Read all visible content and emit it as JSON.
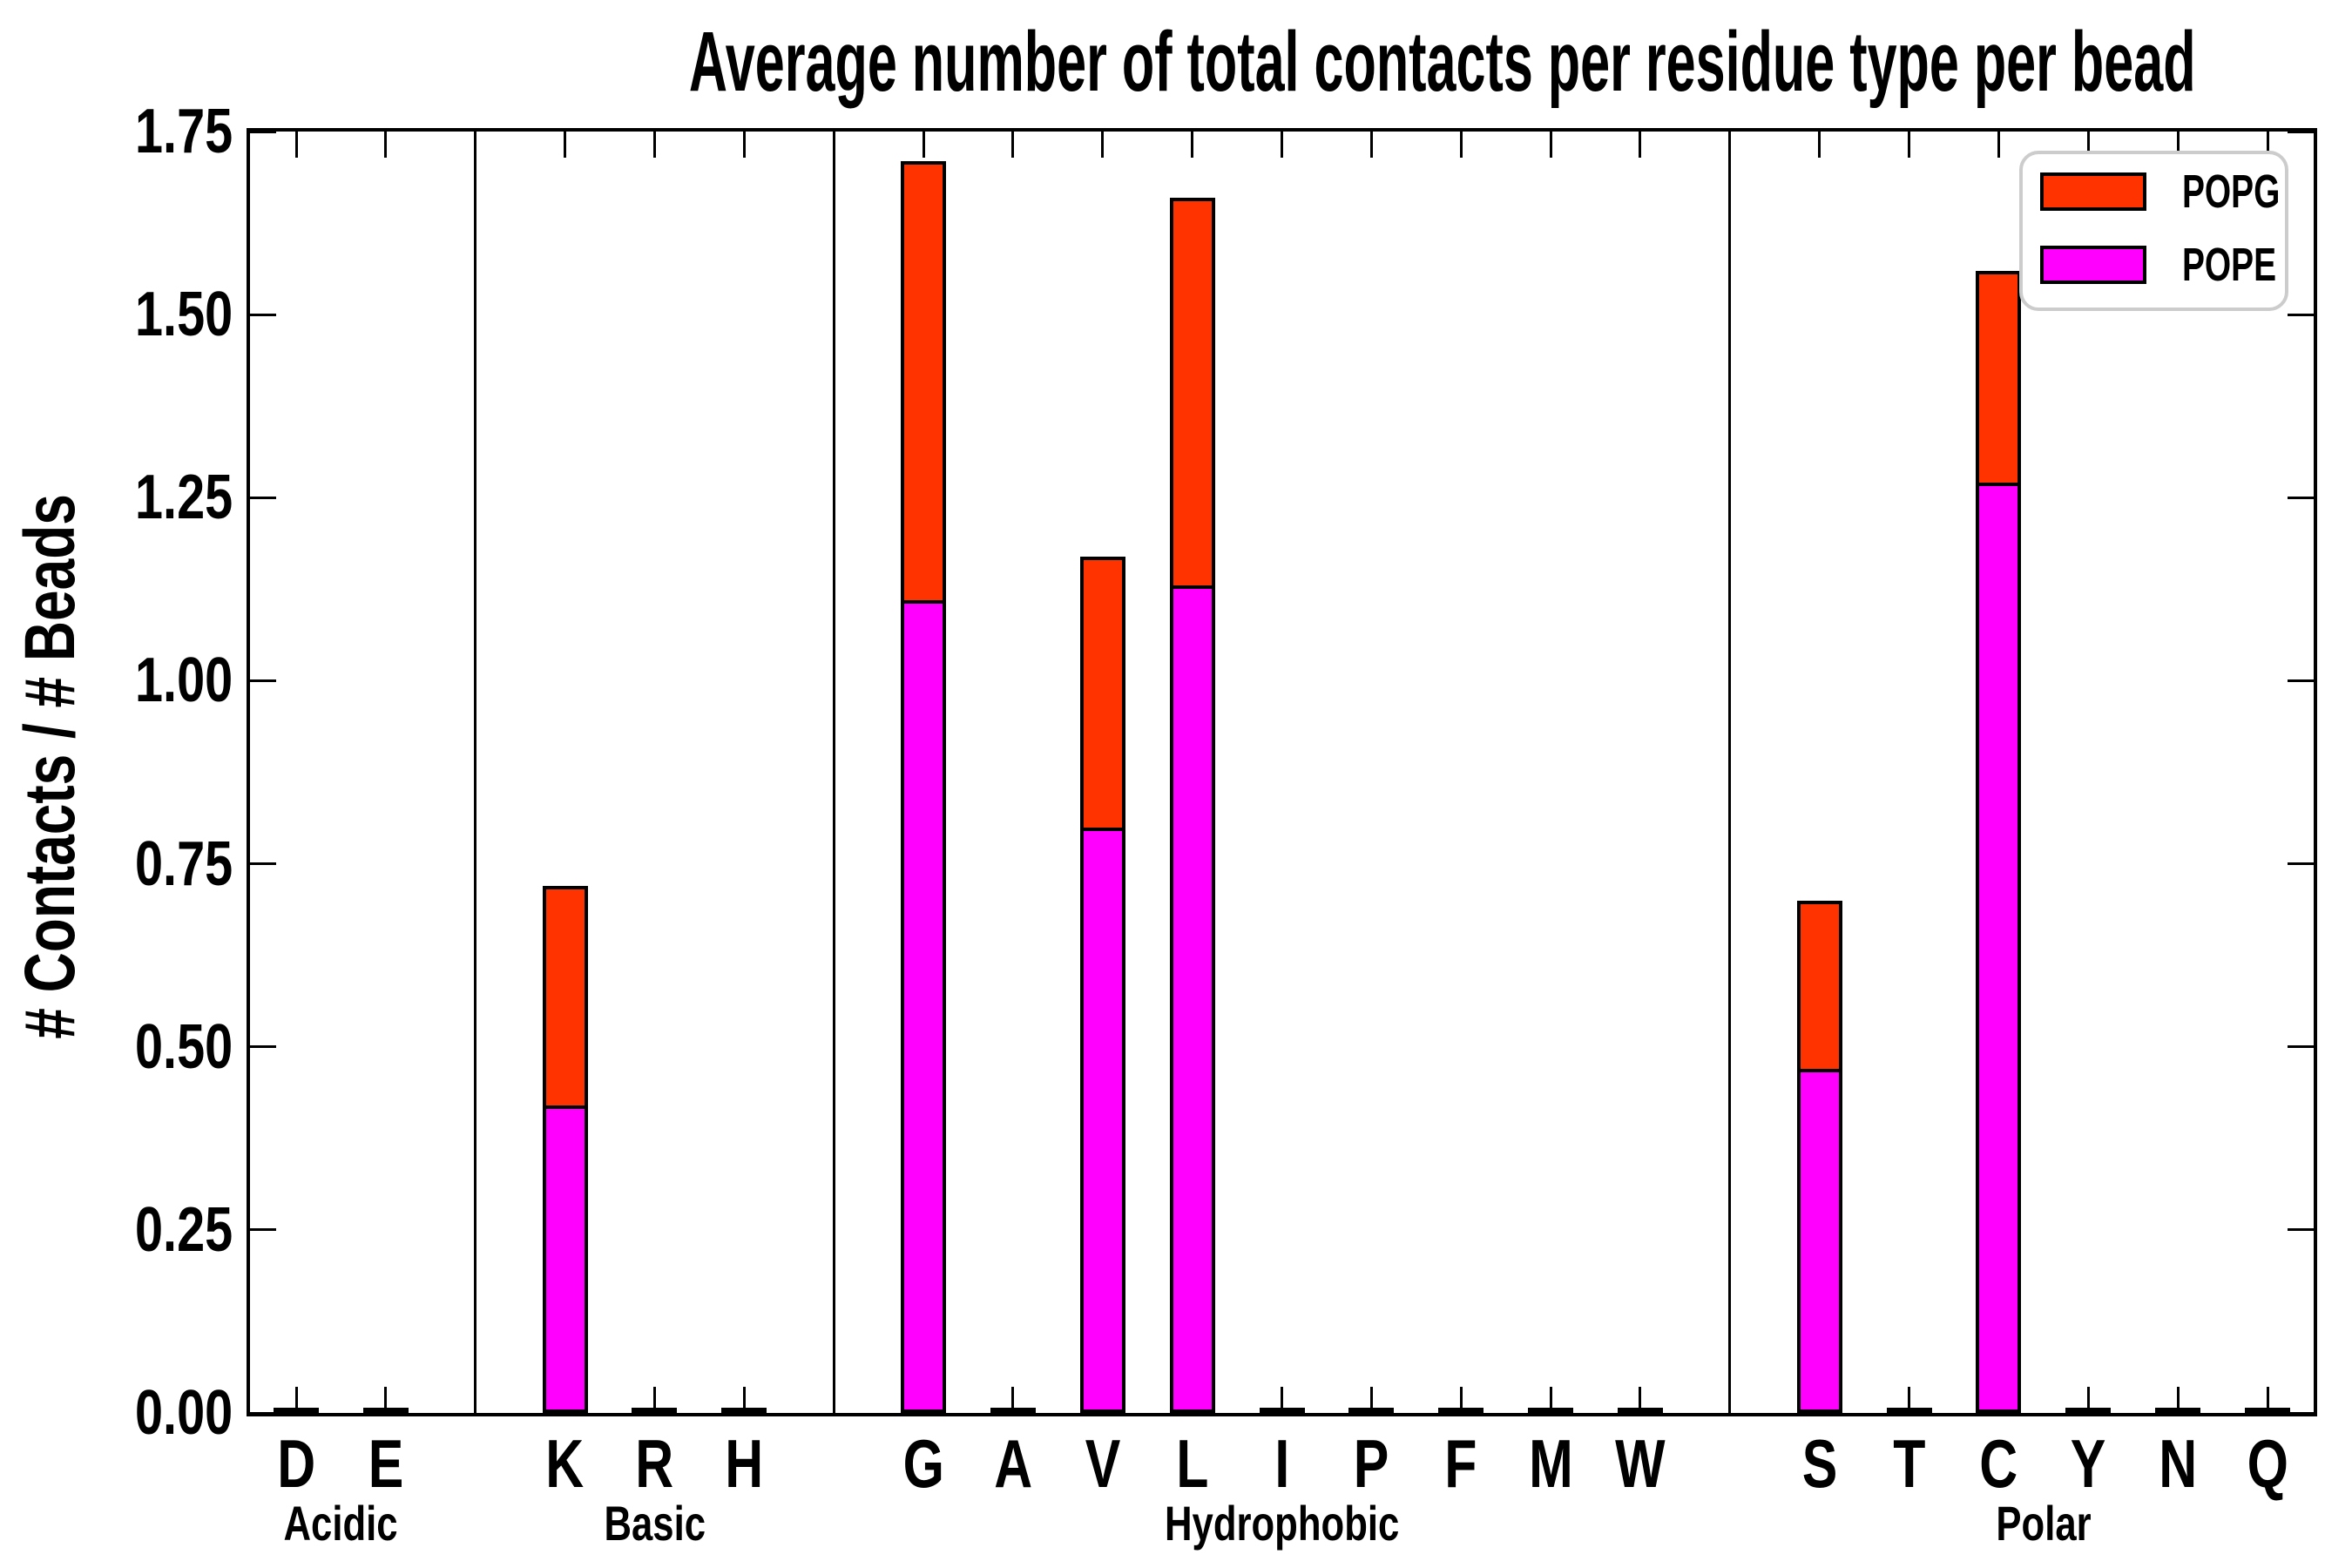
{
  "title": "Average number of total contacts per residue type per bead",
  "y_axis": {
    "label": "# Contacts / # Beads",
    "ticks": [
      "0.00",
      "0.25",
      "0.50",
      "0.75",
      "1.00",
      "1.25",
      "1.50",
      "1.75"
    ]
  },
  "legend": [
    {
      "label": "POPG",
      "color": "#ff3300"
    },
    {
      "label": "POPE",
      "color": "#ff00ff"
    }
  ],
  "chart_data": {
    "type": "bar",
    "stacked": true,
    "title": "Average number of total contacts per residue type per bead",
    "ylabel": "# Contacts / # Beads",
    "ylim": [
      0,
      1.75
    ],
    "ytick_step": 0.25,
    "grid": false,
    "legend_position": "upper right",
    "categories": [
      "D",
      "E",
      "K",
      "R",
      "H",
      "G",
      "A",
      "V",
      "L",
      "I",
      "P",
      "F",
      "M",
      "W",
      "S",
      "T",
      "C",
      "Y",
      "N",
      "Q"
    ],
    "groups": [
      {
        "label": "Acidic",
        "residues": [
          "D",
          "E"
        ]
      },
      {
        "label": "Basic",
        "residues": [
          "K",
          "R",
          "H"
        ]
      },
      {
        "label": "Hydrophobic",
        "residues": [
          "G",
          "A",
          "V",
          "L",
          "I",
          "P",
          "F",
          "M",
          "W"
        ]
      },
      {
        "label": "Polar",
        "residues": [
          "S",
          "T",
          "C",
          "Y",
          "N",
          "Q"
        ]
      }
    ],
    "series": [
      {
        "name": "POPE",
        "color": "#ff00ff",
        "stack_order": "bottom",
        "values": [
          0.005,
          0.005,
          0.42,
          0.005,
          0.005,
          1.11,
          0.005,
          0.8,
          1.13,
          0.005,
          0.005,
          0.005,
          0.005,
          0.005,
          0.47,
          0.005,
          1.27,
          0.005,
          0.005,
          0.005
        ]
      },
      {
        "name": "POPG",
        "color": "#ff3300",
        "stack_order": "top",
        "values": [
          0,
          0,
          0.3,
          0,
          0,
          0.6,
          0,
          0.37,
          0.53,
          0,
          0,
          0,
          0,
          0,
          0.23,
          0,
          0.29,
          0,
          0,
          0
        ]
      }
    ],
    "totals_note": {
      "K": 0.72,
      "G": 1.71,
      "V": 1.17,
      "L": 1.66,
      "S": 0.7,
      "C": 1.56
    }
  }
}
